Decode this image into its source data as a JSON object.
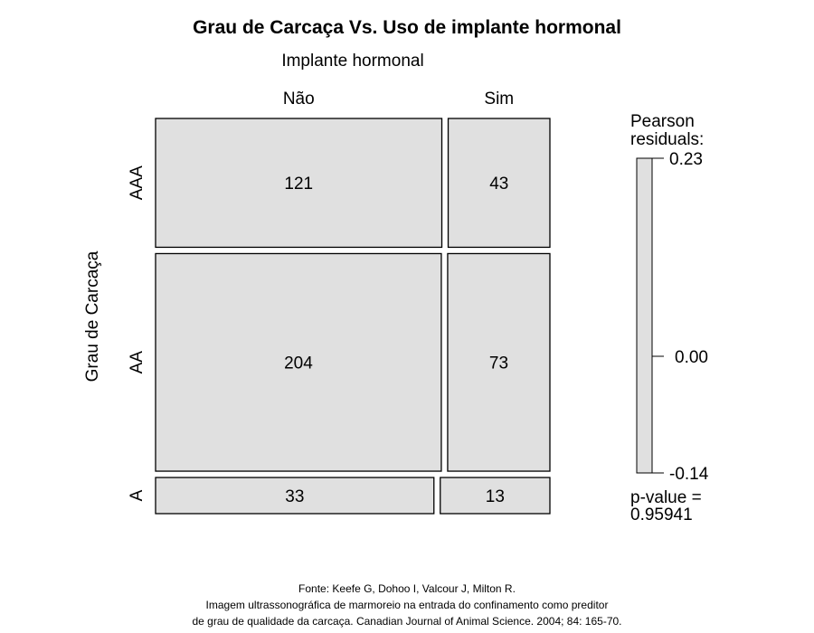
{
  "chart_data": {
    "type": "mosaic",
    "title": "Grau de Carcaça  Vs. Uso de implante hormonal",
    "column_variable": "Implante hormonal",
    "row_variable": "Grau de Carcaça",
    "columns": [
      "Não",
      "Sim"
    ],
    "rows": [
      "AAA",
      "AA",
      "A"
    ],
    "counts": [
      [
        121,
        43
      ],
      [
        204,
        73
      ],
      [
        33,
        13
      ]
    ],
    "legend": {
      "title_lines": [
        "Pearson",
        "residuals:"
      ],
      "ticks": [
        "0.23",
        "0.00",
        "-0.14"
      ],
      "range": [
        -0.14,
        0.23
      ],
      "p_value_lines": [
        "p-value =",
        "0.95941"
      ]
    },
    "colors": {
      "tile_fill": "#e0e0e0",
      "tile_stroke": "#000000"
    }
  },
  "footer": {
    "lines": [
      "Fonte: Keefe G, Dohoo I, Valcour J, Milton R.",
      "Imagem ultrassonográfica de marmoreio na entrada do confinamento como preditor",
      "de grau de qualidade da carcaça. Canadian Journal of Animal Science. 2004; 84: 165-70."
    ]
  }
}
